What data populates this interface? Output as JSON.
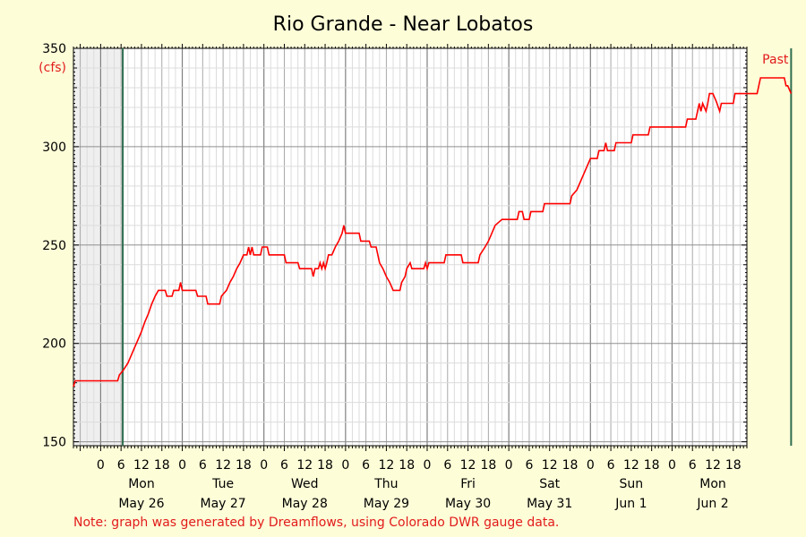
{
  "chart_data": {
    "type": "line",
    "title": "Rio Grande - Near Lobatos",
    "ylabel": "(cfs)",
    "ylim": [
      148,
      350
    ],
    "yticks": [
      150,
      200,
      250,
      300,
      350
    ],
    "ytick_labels": [
      "150",
      "200",
      "250",
      "300",
      "350"
    ],
    "xlim_hours": [
      -8,
      190
    ],
    "hour_tick_labels": [
      "0",
      "6",
      "12",
      "18"
    ],
    "day_labels": [
      {
        "day": "Mon",
        "date": "May 26"
      },
      {
        "day": "Tue",
        "date": "May 27"
      },
      {
        "day": "Wed",
        "date": "May 28"
      },
      {
        "day": "Thu",
        "date": "May 29"
      },
      {
        "day": "Fri",
        "date": "May 30"
      },
      {
        "day": "Sat",
        "date": "May 31"
      },
      {
        "day": "Sun",
        "date": "Jun 1"
      },
      {
        "day": "Mon",
        "date": "Jun 2"
      }
    ],
    "past_label": "Past",
    "grid": true,
    "colors": {
      "line": "#ff0000",
      "marker": "#2e6e4e",
      "shade": "#efefef",
      "label": "#e21b1b"
    },
    "series": [
      {
        "points": [
          [
            -8,
            178
          ],
          [
            -7.5,
            181
          ],
          [
            0,
            181
          ],
          [
            5,
            181
          ],
          [
            5.5,
            184
          ],
          [
            6.5,
            186
          ],
          [
            8,
            190
          ],
          [
            9,
            194
          ],
          [
            10,
            198
          ],
          [
            11,
            202
          ],
          [
            12,
            206
          ],
          [
            13,
            211
          ],
          [
            14,
            215
          ],
          [
            15,
            220
          ],
          [
            16,
            224
          ],
          [
            17,
            227
          ],
          [
            19,
            227
          ],
          [
            19.5,
            224
          ],
          [
            21,
            224
          ],
          [
            21.5,
            227
          ],
          [
            23,
            227
          ],
          [
            23.5,
            231
          ],
          [
            24,
            227
          ],
          [
            26,
            227
          ],
          [
            28,
            227
          ],
          [
            28.5,
            224
          ],
          [
            31,
            224
          ],
          [
            31.5,
            220
          ],
          [
            35,
            220
          ],
          [
            35.5,
            224
          ],
          [
            37,
            227
          ],
          [
            38,
            231
          ],
          [
            39,
            234
          ],
          [
            40,
            238
          ],
          [
            41,
            241
          ],
          [
            42,
            245
          ],
          [
            43,
            245
          ],
          [
            43.5,
            249
          ],
          [
            44,
            245
          ],
          [
            44.5,
            249
          ],
          [
            45,
            245
          ],
          [
            47,
            245
          ],
          [
            47.5,
            249
          ],
          [
            49,
            249
          ],
          [
            49.5,
            245
          ],
          [
            52,
            245
          ],
          [
            54,
            245
          ],
          [
            54.5,
            241
          ],
          [
            58,
            241
          ],
          [
            58.5,
            238
          ],
          [
            62,
            238
          ],
          [
            62.5,
            234
          ],
          [
            63,
            238
          ],
          [
            64,
            238
          ],
          [
            64.5,
            241
          ],
          [
            65,
            238
          ],
          [
            65.5,
            241
          ],
          [
            66,
            238
          ],
          [
            66.5,
            241
          ],
          [
            67,
            245
          ],
          [
            68,
            245
          ],
          [
            69,
            249
          ],
          [
            70,
            252
          ],
          [
            71,
            256
          ],
          [
            71.5,
            260
          ],
          [
            72,
            256
          ],
          [
            73,
            256
          ],
          [
            76,
            256
          ],
          [
            76.5,
            252
          ],
          [
            79,
            252
          ],
          [
            79.5,
            249
          ],
          [
            81,
            249
          ],
          [
            81.5,
            245
          ],
          [
            82,
            241
          ],
          [
            83,
            238
          ],
          [
            84,
            234
          ],
          [
            85,
            231
          ],
          [
            86,
            227
          ],
          [
            88,
            227
          ],
          [
            88.5,
            231
          ],
          [
            89.5,
            234
          ],
          [
            90,
            238
          ],
          [
            91,
            241
          ],
          [
            91.5,
            238
          ],
          [
            95,
            238
          ],
          [
            95.5,
            241
          ],
          [
            96,
            238
          ],
          [
            96.5,
            241
          ],
          [
            98,
            241
          ],
          [
            101,
            241
          ],
          [
            101.5,
            245
          ],
          [
            106,
            245
          ],
          [
            106.5,
            241
          ],
          [
            111,
            241
          ],
          [
            111.5,
            245
          ],
          [
            113,
            249
          ],
          [
            114,
            252
          ],
          [
            115,
            256
          ],
          [
            116,
            260
          ],
          [
            118,
            263
          ],
          [
            121,
            263
          ],
          [
            122.5,
            263
          ],
          [
            123,
            267
          ],
          [
            124,
            267
          ],
          [
            124.5,
            263
          ],
          [
            126,
            263
          ],
          [
            126.5,
            267
          ],
          [
            130,
            267
          ],
          [
            130.5,
            271
          ],
          [
            138,
            271
          ],
          [
            138.5,
            275
          ],
          [
            140,
            278
          ],
          [
            141,
            282
          ],
          [
            142,
            286
          ],
          [
            143,
            290
          ],
          [
            144,
            294
          ],
          [
            146,
            294
          ],
          [
            146.5,
            298
          ],
          [
            148,
            298
          ],
          [
            148.5,
            302
          ],
          [
            149,
            298
          ],
          [
            151,
            298
          ],
          [
            151.5,
            302
          ],
          [
            156,
            302
          ],
          [
            156.5,
            306
          ],
          [
            161,
            306
          ],
          [
            161.5,
            310
          ],
          [
            172,
            310
          ],
          [
            172.5,
            314
          ],
          [
            175,
            314
          ],
          [
            175.5,
            318
          ],
          [
            176,
            322
          ],
          [
            176.5,
            318
          ],
          [
            177,
            322
          ],
          [
            178,
            318
          ],
          [
            178.5,
            322
          ],
          [
            179,
            327
          ],
          [
            180,
            327
          ],
          [
            181,
            323
          ],
          [
            182,
            318
          ],
          [
            182.5,
            322
          ],
          [
            186,
            322
          ],
          [
            186.5,
            327
          ],
          [
            193,
            327
          ],
          [
            193.5,
            331
          ],
          [
            194,
            335
          ],
          [
            201,
            335
          ],
          [
            201.5,
            331
          ],
          [
            202,
            331
          ],
          [
            203,
            327
          ]
        ]
      }
    ],
    "shaded_before_hour": 6.5,
    "shaded_after_hour": 203,
    "marker_hours": [
      6.5,
      203
    ]
  },
  "note": "Note: graph was generated by Dreamflows, using Colorado DWR gauge data."
}
